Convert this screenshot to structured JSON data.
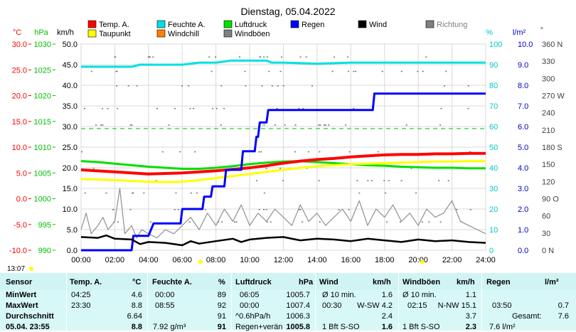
{
  "title": "Dienstag, 05.04.2022",
  "time_label": "13:07",
  "legend": [
    {
      "label": "Temp. A.",
      "color": "#ff0000"
    },
    {
      "label": "Feuchte A.",
      "color": "#00e0e0"
    },
    {
      "label": "Luftdruck",
      "color": "#00e000"
    },
    {
      "label": "Regen",
      "color": "#0000ff"
    },
    {
      "label": "Wind",
      "color": "#000000"
    },
    {
      "label": "Richtung",
      "color": "#808080"
    },
    {
      "label": "Taupunkt",
      "color": "#ffff00"
    },
    {
      "label": "Windchill",
      "color": "#ff8000"
    },
    {
      "label": "Windböen",
      "color": "#808080"
    }
  ],
  "axes": {
    "temp": {
      "unit": "°C",
      "ticks": [
        "30.0",
        "25.0",
        "20.0",
        "15.0",
        "10.0",
        "5.0",
        "0.0",
        "-5.0",
        "-10.0"
      ],
      "color": "#ff0000"
    },
    "press": {
      "unit": "hPa",
      "ticks": [
        "1030",
        "1025",
        "1020",
        "1015",
        "1010",
        "1005",
        "1000",
        "995",
        "990"
      ],
      "color": "#00c000"
    },
    "wind": {
      "unit": "km/h",
      "ticks": [
        "50.0",
        "45.0",
        "40.0",
        "35.0",
        "30.0",
        "25.0",
        "20.0",
        "15.0",
        "10.0",
        "5.0",
        "0.0"
      ],
      "color": "#000000"
    },
    "hum": {
      "unit": "%",
      "ticks": [
        "100",
        "90",
        "80",
        "70",
        "60",
        "50",
        "40",
        "30",
        "20",
        "10",
        "0"
      ],
      "color": "#00c8c8"
    },
    "rain": {
      "unit": "l/m²",
      "ticks": [
        "10.0",
        "9.0",
        "8.0",
        "7.0",
        "6.0",
        "5.0",
        "4.0",
        "3.0",
        "2.0",
        "1.0",
        "0.0"
      ],
      "color": "#0000cc"
    },
    "dir": {
      "unit": "°",
      "ticks": [
        "360 N",
        "330",
        "300",
        "270 W",
        "240",
        "210",
        "180 S",
        "150",
        "120",
        "90 O",
        "60",
        "30",
        "0 N"
      ],
      "color": "#404040"
    },
    "x": {
      "ticks": [
        "00:00",
        "02:00",
        "04:00",
        "06:00",
        "08:00",
        "10:00",
        "12:00",
        "14:00",
        "16:00",
        "18:00",
        "20:00",
        "22:00",
        "24:00"
      ]
    }
  },
  "chart_data": {
    "type": "line",
    "x_unit": "hours",
    "series": [
      {
        "name": "Temp. A.",
        "axis": "temp",
        "color": "#ff0000",
        "points": [
          [
            0,
            5.6
          ],
          [
            2,
            5.2
          ],
          [
            4,
            4.8
          ],
          [
            5,
            4.9
          ],
          [
            6,
            5.0
          ],
          [
            7,
            5.2
          ],
          [
            8,
            5.4
          ],
          [
            9,
            5.7
          ],
          [
            10,
            6.0
          ],
          [
            11,
            6.4
          ],
          [
            12,
            6.9
          ],
          [
            13,
            7.3
          ],
          [
            14,
            7.6
          ],
          [
            15,
            7.8
          ],
          [
            16,
            8.1
          ],
          [
            17,
            8.3
          ],
          [
            18,
            8.5
          ],
          [
            19,
            8.6
          ],
          [
            20,
            8.6
          ],
          [
            21,
            8.7
          ],
          [
            22,
            8.7
          ],
          [
            23,
            8.8
          ],
          [
            24,
            8.8
          ]
        ]
      },
      {
        "name": "Taupunkt",
        "axis": "temp",
        "color": "#ffff00",
        "points": [
          [
            0,
            3.8
          ],
          [
            2,
            3.6
          ],
          [
            4,
            3.3
          ],
          [
            5,
            3.2
          ],
          [
            6,
            3.3
          ],
          [
            7,
            3.6
          ],
          [
            8,
            4.0
          ],
          [
            9,
            4.4
          ],
          [
            10,
            4.8
          ],
          [
            11,
            5.2
          ],
          [
            12,
            5.6
          ],
          [
            13,
            6.0
          ],
          [
            14,
            6.3
          ],
          [
            15,
            6.5
          ],
          [
            16,
            6.7
          ],
          [
            17,
            6.8
          ],
          [
            18,
            6.9
          ],
          [
            19,
            7.0
          ],
          [
            20,
            7.1
          ],
          [
            21,
            7.2
          ],
          [
            22,
            7.2
          ],
          [
            23,
            7.3
          ],
          [
            24,
            7.3
          ]
        ]
      },
      {
        "name": "Luftdruck",
        "axis": "press",
        "color": "#00e000",
        "points": [
          [
            0,
            1007.3
          ],
          [
            1,
            1007.1
          ],
          [
            2,
            1006.8
          ],
          [
            3,
            1006.5
          ],
          [
            4,
            1006.2
          ],
          [
            5,
            1006.0
          ],
          [
            6,
            1005.8
          ],
          [
            7,
            1005.8
          ],
          [
            8,
            1006.0
          ],
          [
            9,
            1006.3
          ],
          [
            10,
            1006.7
          ],
          [
            11,
            1007.0
          ],
          [
            12,
            1007.2
          ],
          [
            13,
            1007.3
          ],
          [
            14,
            1007.1
          ],
          [
            15,
            1006.9
          ],
          [
            16,
            1006.7
          ],
          [
            17,
            1006.5
          ],
          [
            18,
            1006.4
          ],
          [
            19,
            1006.2
          ],
          [
            20,
            1006.1
          ],
          [
            21,
            1006.0
          ],
          [
            22,
            1006.0
          ],
          [
            23,
            1005.9
          ],
          [
            24,
            1005.9
          ]
        ]
      },
      {
        "name": "Feuchte A.",
        "axis": "hum",
        "color": "#00e0e0",
        "points": [
          [
            0,
            89
          ],
          [
            3,
            89
          ],
          [
            3.5,
            90
          ],
          [
            6,
            90
          ],
          [
            7,
            91
          ],
          [
            8,
            91
          ],
          [
            8.9,
            92
          ],
          [
            11,
            92
          ],
          [
            11.3,
            91
          ],
          [
            12,
            91
          ],
          [
            14,
            90.5
          ],
          [
            16,
            91
          ],
          [
            20,
            91
          ],
          [
            24,
            91
          ]
        ]
      },
      {
        "name": "Regen",
        "axis": "rain",
        "color": "#0000ff",
        "step": true,
        "points": [
          [
            0,
            0
          ],
          [
            3,
            0
          ],
          [
            3.1,
            0.7
          ],
          [
            4,
            0.7
          ],
          [
            4.3,
            1.3
          ],
          [
            5.9,
            1.3
          ],
          [
            6,
            2.0
          ],
          [
            7.2,
            2.0
          ],
          [
            7.3,
            2.6
          ],
          [
            7.7,
            2.6
          ],
          [
            7.8,
            3.1
          ],
          [
            8.5,
            3.1
          ],
          [
            8.6,
            3.9
          ],
          [
            9.5,
            3.9
          ],
          [
            9.6,
            4.8
          ],
          [
            10.3,
            4.8
          ],
          [
            10.4,
            5.5
          ],
          [
            10.5,
            5.5
          ],
          [
            10.6,
            6.2
          ],
          [
            11.0,
            6.2
          ],
          [
            11.1,
            6.8
          ],
          [
            12.0,
            6.8
          ],
          [
            12.1,
            6.8
          ],
          [
            17.3,
            6.8
          ],
          [
            17.4,
            7.6
          ],
          [
            24,
            7.6
          ]
        ]
      },
      {
        "name": "Wind",
        "axis": "wind",
        "color": "#000000",
        "points": [
          [
            0,
            3.2
          ],
          [
            1,
            3.0
          ],
          [
            1.5,
            3.6
          ],
          [
            2,
            2.8
          ],
          [
            3,
            2.6
          ],
          [
            3.5,
            1.5
          ],
          [
            4,
            2.0
          ],
          [
            5,
            1.8
          ],
          [
            6,
            1.2
          ],
          [
            6.5,
            2.2
          ],
          [
            7,
            1.6
          ],
          [
            8,
            2.2
          ],
          [
            9,
            2.8
          ],
          [
            9.5,
            2.0
          ],
          [
            10,
            2.6
          ],
          [
            11,
            3.0
          ],
          [
            12,
            3.2
          ],
          [
            13,
            2.4
          ],
          [
            14,
            2.8
          ],
          [
            15,
            2.6
          ],
          [
            16,
            2.2
          ],
          [
            17,
            2.8
          ],
          [
            18,
            2.4
          ],
          [
            19,
            2.0
          ],
          [
            20,
            2.6
          ],
          [
            21,
            2.2
          ],
          [
            22,
            2.4
          ],
          [
            23,
            2.0
          ],
          [
            24,
            1.8
          ]
        ]
      },
      {
        "name": "Windböen",
        "axis": "wind",
        "color": "#909090",
        "points": [
          [
            0,
            5
          ],
          [
            0.3,
            9
          ],
          [
            0.6,
            4
          ],
          [
            1,
            6
          ],
          [
            1.3,
            8
          ],
          [
            1.6,
            5
          ],
          [
            2,
            7
          ],
          [
            2.3,
            15
          ],
          [
            2.6,
            4
          ],
          [
            3,
            6
          ],
          [
            3.3,
            3
          ],
          [
            3.6,
            5
          ],
          [
            4,
            4
          ],
          [
            4.5,
            3
          ],
          [
            5,
            5
          ],
          [
            5.5,
            4
          ],
          [
            6,
            6
          ],
          [
            6.5,
            8
          ],
          [
            7,
            5
          ],
          [
            7.5,
            9
          ],
          [
            8,
            6
          ],
          [
            8.5,
            10
          ],
          [
            9,
            7
          ],
          [
            9.5,
            11
          ],
          [
            10,
            6
          ],
          [
            10.5,
            9
          ],
          [
            11,
            7
          ],
          [
            11.5,
            10
          ],
          [
            12,
            8
          ],
          [
            12.5,
            6
          ],
          [
            13,
            11
          ],
          [
            13.5,
            7
          ],
          [
            14,
            9
          ],
          [
            14.5,
            6
          ],
          [
            15,
            8
          ],
          [
            15.5,
            10
          ],
          [
            16,
            7
          ],
          [
            16.5,
            12
          ],
          [
            17,
            6
          ],
          [
            17.5,
            10
          ],
          [
            18,
            8
          ],
          [
            18.5,
            11
          ],
          [
            19,
            7
          ],
          [
            19.5,
            9
          ],
          [
            20,
            6
          ],
          [
            20.5,
            10
          ],
          [
            21,
            8
          ],
          [
            21.5,
            9
          ],
          [
            22,
            12
          ],
          [
            22.5,
            7
          ],
          [
            23,
            6
          ],
          [
            23.5,
            5
          ],
          [
            24,
            4
          ]
        ]
      }
    ],
    "rain_threshold_rain": 5.9
  },
  "stats": {
    "headers": [
      "Sensor",
      "Temp. A.",
      "°C",
      "Feuchte A.",
      "%",
      "Luftdruck",
      "hPa",
      "Wind",
      "km/h",
      "Windböen",
      "km/h",
      "Regen",
      "l/m²"
    ],
    "rows": [
      {
        "label": "MinWert",
        "temp_t": "04:25",
        "temp_v": "4.6",
        "hum_t": "00:00",
        "hum_v": "89",
        "press_t": "06:05",
        "press_v": "1005.7",
        "wind_t": "Ø 10 min.",
        "wind_v": "1.6",
        "gust_t": "Ø 10 min.",
        "gust_v": "1.1",
        "rain_t": "",
        "rain_v": ""
      },
      {
        "label": "MaxWert",
        "temp_t": "23:30",
        "temp_v": "8.8",
        "hum_t": "08:55",
        "hum_v": "92",
        "press_t": "00:00",
        "press_v": "1007.4",
        "wind_t": "00:30",
        "wind_d": "W-SW 4.2",
        "wind_v": "",
        "gust_t": "02:15",
        "gust_d": "N-NW 15.1",
        "gust_v": "",
        "rain_t": "03:50",
        "rain_v": "0.7"
      },
      {
        "label": "Durchschnitt",
        "temp_t": "",
        "temp_v": "6.64",
        "hum_t": "",
        "hum_v": "91",
        "press_t": "^0.6hPa/h",
        "press_v": "1006.3",
        "wind_t": "",
        "wind_v": "2.4",
        "gust_t": "",
        "gust_v": "3.7",
        "rain_t": "Gesamt:",
        "rain_v": "7.6"
      },
      {
        "label": "05.04. 23:55",
        "temp_t": "",
        "temp_v": "8.8",
        "hum_t": "7.92 g/m³",
        "hum_v": "91",
        "press_t": "Regen+verän",
        "press_v": "1005.8",
        "wind_t": "1 Bft S-SO",
        "wind_v": "1.6",
        "gust_t": "1 Bft S-SO",
        "gust_v": "2.3",
        "rain_t": "7.6 l/m²",
        "rain_v": ""
      }
    ]
  }
}
